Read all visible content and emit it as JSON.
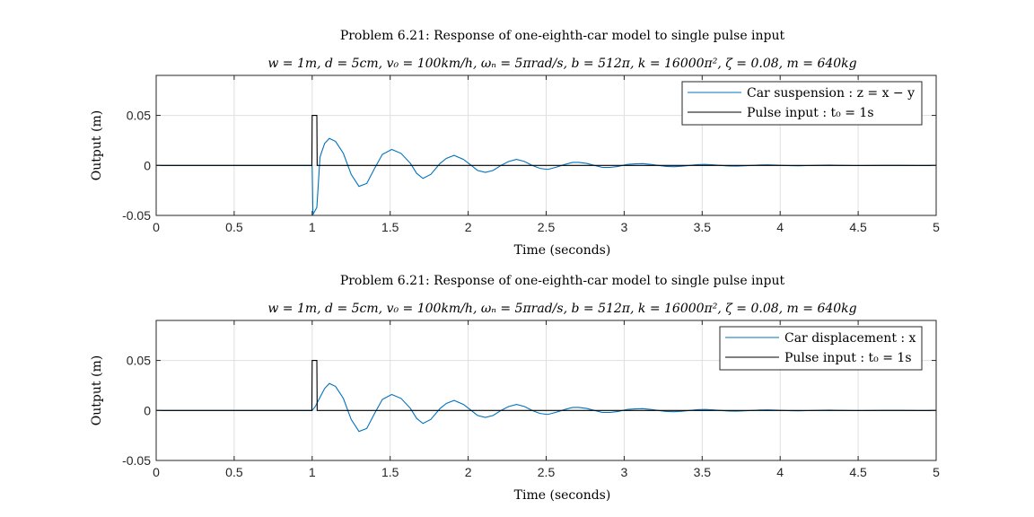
{
  "chart_data": [
    {
      "type": "line",
      "title": "Problem 6.21: Response of one-eighth-car model to single pulse input",
      "subtitle": "w = 1m, d = 5cm, v₀ = 100km/h, ωₙ = 5πrad/s, b = 512π, k = 16000π², ζ = 0.08, m = 640kg",
      "xlabel": "Time (seconds)",
      "ylabel": "Output (m)",
      "xlim": [
        0,
        5
      ],
      "ylim": [
        -0.05,
        0.09
      ],
      "xticks": [
        0,
        0.5,
        1,
        1.5,
        2,
        2.5,
        3,
        3.5,
        4,
        4.5,
        5
      ],
      "xtick_labels": [
        "0",
        "0.5",
        "1",
        "1.5",
        "2",
        "2.5",
        "3",
        "3.5",
        "4",
        "4.5",
        "5"
      ],
      "yticks": [
        -0.05,
        0,
        0.05
      ],
      "ytick_labels": [
        "-0.05",
        "0",
        "0.05"
      ],
      "grid": true,
      "legend_position": "top-right",
      "series": [
        {
          "name": "Car suspension : z = x − y",
          "color": "#0072BD",
          "points": [
            [
              0,
              0
            ],
            [
              0.999,
              0
            ],
            [
              1.0,
              -0.002
            ],
            [
              1.005,
              -0.049
            ],
            [
              1.03,
              -0.042
            ],
            [
              1.05,
              0.008
            ],
            [
              1.06,
              0.013
            ],
            [
              1.08,
              0.022
            ],
            [
              1.11,
              0.027
            ],
            [
              1.15,
              0.024
            ],
            [
              1.2,
              0.012
            ],
            [
              1.25,
              -0.009
            ],
            [
              1.3,
              -0.021
            ],
            [
              1.35,
              -0.018
            ],
            [
              1.4,
              -0.003
            ],
            [
              1.45,
              0.011
            ],
            [
              1.51,
              0.016
            ],
            [
              1.57,
              0.012
            ],
            [
              1.63,
              0.002
            ],
            [
              1.67,
              -0.008
            ],
            [
              1.71,
              -0.013
            ],
            [
              1.76,
              -0.009
            ],
            [
              1.82,
              0.002
            ],
            [
              1.86,
              0.007
            ],
            [
              1.91,
              0.01
            ],
            [
              1.97,
              0.006
            ],
            [
              2.02,
              0.0
            ],
            [
              2.06,
              -0.005
            ],
            [
              2.11,
              -0.007
            ],
            [
              2.16,
              -0.005
            ],
            [
              2.21,
              0.0
            ],
            [
              2.26,
              0.004
            ],
            [
              2.31,
              0.006
            ],
            [
              2.36,
              0.004
            ],
            [
              2.41,
              0.0
            ],
            [
              2.46,
              -0.003
            ],
            [
              2.51,
              -0.004
            ],
            [
              2.56,
              -0.002
            ],
            [
              2.62,
              0.001
            ],
            [
              2.67,
              0.003
            ],
            [
              2.71,
              0.003
            ],
            [
              2.76,
              0.002
            ],
            [
              2.81,
              0.0
            ],
            [
              2.86,
              -0.002
            ],
            [
              2.91,
              -0.002
            ],
            [
              2.96,
              -0.001
            ],
            [
              3.02,
              0.001
            ],
            [
              3.07,
              0.0015
            ],
            [
              3.12,
              0.0018
            ],
            [
              3.17,
              0.001
            ],
            [
              3.22,
              0.0
            ],
            [
              3.27,
              -0.001
            ],
            [
              3.32,
              -0.0013
            ],
            [
              3.37,
              -0.0008
            ],
            [
              3.42,
              0.0
            ],
            [
              3.47,
              0.0008
            ],
            [
              3.52,
              0.001
            ],
            [
              3.57,
              0.0006
            ],
            [
              3.62,
              0.0
            ],
            [
              3.67,
              -0.0006
            ],
            [
              3.72,
              -0.0007
            ],
            [
              3.77,
              -0.0004
            ],
            [
              3.82,
              0.0
            ],
            [
              3.87,
              0.0004
            ],
            [
              3.92,
              0.0005
            ],
            [
              3.97,
              0.0003
            ],
            [
              4.02,
              0.0
            ],
            [
              4.07,
              -0.0003
            ],
            [
              4.12,
              -0.0004
            ],
            [
              4.17,
              -0.0002
            ],
            [
              4.22,
              0.0
            ],
            [
              4.27,
              0.0002
            ],
            [
              4.32,
              0.0003
            ],
            [
              4.37,
              0.0001
            ],
            [
              4.42,
              0.0
            ],
            [
              4.47,
              -0.0002
            ],
            [
              4.52,
              -0.0002
            ],
            [
              4.57,
              -0.0001
            ],
            [
              4.62,
              0.0
            ],
            [
              4.67,
              0.0001
            ],
            [
              4.72,
              0.0001
            ],
            [
              4.77,
              0.0001
            ],
            [
              4.82,
              0.0
            ],
            [
              4.87,
              -0.0001
            ],
            [
              4.92,
              -0.0001
            ],
            [
              4.97,
              0.0
            ],
            [
              5.0,
              0.0
            ]
          ]
        },
        {
          "name": "Pulse input : t₀ = 1s",
          "color": "#000000",
          "points": [
            [
              0,
              0
            ],
            [
              0.998,
              0
            ],
            [
              1.0,
              0.05
            ],
            [
              1.03,
              0.05
            ],
            [
              1.032,
              0
            ],
            [
              5,
              0
            ]
          ]
        }
      ]
    },
    {
      "type": "line",
      "title": "Problem 6.21: Response of one-eighth-car model to single pulse input",
      "subtitle": "w = 1m, d = 5cm, v₀ = 100km/h, ωₙ = 5πrad/s, b = 512π, k = 16000π², ζ = 0.08, m = 640kg",
      "xlabel": "Time (seconds)",
      "ylabel": "Output (m)",
      "xlim": [
        0,
        5
      ],
      "ylim": [
        -0.05,
        0.09
      ],
      "xticks": [
        0,
        0.5,
        1,
        1.5,
        2,
        2.5,
        3,
        3.5,
        4,
        4.5,
        5
      ],
      "xtick_labels": [
        "0",
        "0.5",
        "1",
        "1.5",
        "2",
        "2.5",
        "3",
        "3.5",
        "4",
        "4.5",
        "5"
      ],
      "yticks": [
        -0.05,
        0,
        0.05
      ],
      "ytick_labels": [
        "-0.05",
        "0",
        "0.05"
      ],
      "grid": true,
      "legend_position": "top-right",
      "series": [
        {
          "name": "Car displacement : x",
          "color": "#0072BD",
          "points": [
            [
              0,
              0
            ],
            [
              0.999,
              0
            ],
            [
              1.0,
              0.0
            ],
            [
              1.02,
              0.004
            ],
            [
              1.05,
              0.013
            ],
            [
              1.08,
              0.022
            ],
            [
              1.11,
              0.027
            ],
            [
              1.15,
              0.024
            ],
            [
              1.2,
              0.012
            ],
            [
              1.25,
              -0.009
            ],
            [
              1.3,
              -0.021
            ],
            [
              1.35,
              -0.018
            ],
            [
              1.4,
              -0.003
            ],
            [
              1.45,
              0.011
            ],
            [
              1.51,
              0.016
            ],
            [
              1.57,
              0.012
            ],
            [
              1.63,
              0.002
            ],
            [
              1.67,
              -0.008
            ],
            [
              1.71,
              -0.013
            ],
            [
              1.76,
              -0.009
            ],
            [
              1.82,
              0.002
            ],
            [
              1.86,
              0.007
            ],
            [
              1.91,
              0.01
            ],
            [
              1.97,
              0.006
            ],
            [
              2.02,
              0.0
            ],
            [
              2.06,
              -0.005
            ],
            [
              2.11,
              -0.007
            ],
            [
              2.16,
              -0.005
            ],
            [
              2.21,
              0.0
            ],
            [
              2.26,
              0.004
            ],
            [
              2.31,
              0.006
            ],
            [
              2.36,
              0.004
            ],
            [
              2.41,
              0.0
            ],
            [
              2.46,
              -0.003
            ],
            [
              2.51,
              -0.004
            ],
            [
              2.56,
              -0.002
            ],
            [
              2.62,
              0.001
            ],
            [
              2.67,
              0.003
            ],
            [
              2.71,
              0.003
            ],
            [
              2.76,
              0.002
            ],
            [
              2.81,
              0.0
            ],
            [
              2.86,
              -0.002
            ],
            [
              2.91,
              -0.002
            ],
            [
              2.96,
              -0.001
            ],
            [
              3.02,
              0.001
            ],
            [
              3.07,
              0.0015
            ],
            [
              3.12,
              0.0018
            ],
            [
              3.17,
              0.001
            ],
            [
              3.22,
              0.0
            ],
            [
              3.27,
              -0.001
            ],
            [
              3.32,
              -0.0013
            ],
            [
              3.37,
              -0.0008
            ],
            [
              3.42,
              0.0
            ],
            [
              3.47,
              0.0008
            ],
            [
              3.52,
              0.001
            ],
            [
              3.57,
              0.0006
            ],
            [
              3.62,
              0.0
            ],
            [
              3.67,
              -0.0006
            ],
            [
              3.72,
              -0.0007
            ],
            [
              3.77,
              -0.0004
            ],
            [
              3.82,
              0.0
            ],
            [
              3.87,
              0.0004
            ],
            [
              3.92,
              0.0005
            ],
            [
              3.97,
              0.0003
            ],
            [
              4.02,
              0.0
            ],
            [
              4.07,
              -0.0003
            ],
            [
              4.12,
              -0.0004
            ],
            [
              4.17,
              -0.0002
            ],
            [
              4.22,
              0.0
            ],
            [
              4.27,
              0.0002
            ],
            [
              4.32,
              0.0003
            ],
            [
              4.37,
              0.0001
            ],
            [
              4.42,
              0.0
            ],
            [
              4.47,
              -0.0002
            ],
            [
              4.52,
              -0.0002
            ],
            [
              4.57,
              -0.0001
            ],
            [
              4.62,
              0.0
            ],
            [
              4.67,
              0.0001
            ],
            [
              4.72,
              0.0001
            ],
            [
              4.77,
              0.0001
            ],
            [
              4.82,
              0.0
            ],
            [
              4.87,
              -0.0001
            ],
            [
              4.92,
              -0.0001
            ],
            [
              4.97,
              0.0
            ],
            [
              5.0,
              0.0
            ]
          ]
        },
        {
          "name": "Pulse input : t₀ = 1s",
          "color": "#000000",
          "points": [
            [
              0,
              0
            ],
            [
              0.998,
              0
            ],
            [
              1.0,
              0.05
            ],
            [
              1.03,
              0.05
            ],
            [
              1.032,
              0
            ],
            [
              5,
              0
            ]
          ]
        }
      ]
    }
  ]
}
